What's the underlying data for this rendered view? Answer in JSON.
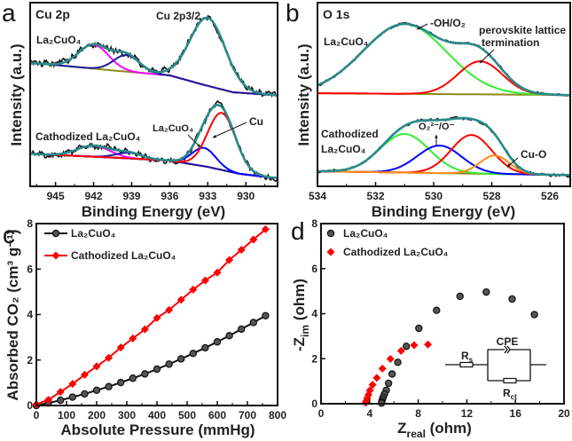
{
  "colors": {
    "data": "#111111",
    "envelope": "#2a8a8a",
    "background": "#8b8b1a",
    "magenta": "#ff00ff",
    "navy": "#1a1a9a",
    "blue": "#0000ff",
    "red": "#ff0000",
    "green": "#33ee33",
    "orange": "#ff8c1a"
  },
  "chart_data": [
    {
      "panel": "a",
      "type": "line",
      "title": "Cu 2p",
      "xlabel": "Binding Energy (eV)",
      "ylabel": "Intensity (a.u.)",
      "xlim": [
        947,
        927.5
      ],
      "xreversed": true,
      "ylim": [
        0,
        100
      ],
      "xticks": [
        945,
        942,
        939,
        936,
        933,
        930
      ],
      "annotations": {
        "main_peak": "Cu 2p3/2",
        "top_label": "La₂CuO₄",
        "bottom_label": "Cathodized La₂CuO₄",
        "blue_label": "La₂CuO₄",
        "red_label": "Cu"
      },
      "spectra": [
        {
          "name": "La₂CuO₄",
          "noise": 1.6,
          "background": [
            [
              947,
              67
            ],
            [
              946,
              66.7
            ],
            [
              940,
              62.8
            ],
            [
              936,
              60.4
            ],
            [
              933.5,
              55.6
            ],
            [
              931,
              51.2
            ],
            [
              928,
              49.8
            ],
            [
              927.5,
              49.6
            ]
          ],
          "peaks": [
            {
              "center": 942.0,
              "fwhm": 2.8,
              "height": 13,
              "color": "magenta"
            },
            {
              "center": 939.4,
              "fwhm": 2.4,
              "height": 9,
              "color": "navy"
            },
            {
              "center": 933.0,
              "fwhm": 3.3,
              "height": 37,
              "color": "envelope"
            }
          ]
        },
        {
          "name": "Cathodized La₂CuO₄",
          "noise": 1.4,
          "background": [
            [
              947,
              17.8
            ],
            [
              946,
              17.4
            ],
            [
              940,
              15.5
            ],
            [
              936,
              14
            ],
            [
              933,
              10.6
            ],
            [
              930.5,
              6.8
            ],
            [
              928,
              4.8
            ],
            [
              927.5,
              4.6
            ]
          ],
          "peaks": [
            {
              "center": 942.0,
              "fwhm": 3.0,
              "height": 6,
              "color": "magenta"
            },
            {
              "center": 939.2,
              "fwhm": 2.5,
              "height": 3,
              "color": "navy"
            },
            {
              "center": 933.3,
              "fwhm": 2.2,
              "height": 10,
              "color": "blue"
            },
            {
              "center": 931.9,
              "fwhm": 2.6,
              "height": 31,
              "color": "red"
            }
          ]
        }
      ]
    },
    {
      "panel": "b",
      "type": "line",
      "title": "O 1s",
      "xlabel": "Binding Energy (eV)",
      "ylabel": "Intensity (a.u.)",
      "xlim": [
        534,
        525.3
      ],
      "xreversed": true,
      "ylim": [
        0,
        100
      ],
      "xticks": [
        534,
        532,
        530,
        528,
        526
      ],
      "annotations": {
        "oh": "-OH/O₂",
        "perov1": "perovskite lattice",
        "perov2": "termination",
        "top_label": "La₂CuO₄",
        "bottom_label1": "Cathodized",
        "bottom_label2": "La₂CuO₄",
        "o2": "O₂²⁻/O⁻",
        "cuo": "Cu-O"
      },
      "spectra": [
        {
          "name": "La₂CuO₄",
          "noise": 0.5,
          "background": [
            [
              534,
              50.7
            ],
            [
              526,
              49.8
            ],
            [
              525.3,
              49.6
            ]
          ],
          "peaks": [
            {
              "center": 531.0,
              "fwhm": 3.4,
              "height": 38,
              "color": "green"
            },
            {
              "center": 528.4,
              "fwhm": 1.8,
              "height": 18,
              "color": "red"
            }
          ]
        },
        {
          "name": "Cathodized La₂CuO₄",
          "noise": 0.6,
          "background": [
            [
              534,
              8.2
            ],
            [
              526,
              6.3
            ],
            [
              525.3,
              6.1
            ]
          ],
          "peaks": [
            {
              "center": 531.0,
              "fwhm": 2.0,
              "height": 21,
              "color": "green"
            },
            {
              "center": 529.8,
              "fwhm": 1.8,
              "height": 15,
              "color": "blue"
            },
            {
              "center": 528.7,
              "fwhm": 1.65,
              "height": 21,
              "color": "red"
            },
            {
              "center": 527.9,
              "fwhm": 1.2,
              "height": 10,
              "color": "orange"
            }
          ]
        }
      ]
    },
    {
      "panel": "c",
      "type": "line",
      "xlabel": "Absolute Pressure (mmHg)",
      "ylabel": "Absorbed CO₂ (cm³ g⁻¹)",
      "xlim": [
        0,
        800
      ],
      "ylim": [
        0,
        8
      ],
      "xticks": [
        0,
        100,
        200,
        300,
        400,
        500,
        600,
        700,
        800
      ],
      "yticks": [
        0,
        2,
        4,
        6,
        8
      ],
      "legend": "top-left",
      "x": [
        0,
        40,
        80,
        120,
        160,
        200,
        240,
        280,
        320,
        360,
        400,
        440,
        480,
        520,
        560,
        600,
        640,
        680,
        720,
        760
      ],
      "series": [
        {
          "name": "La₂CuO₄",
          "color": "#111111",
          "marker": "circle",
          "values": [
            0,
            0.11,
            0.23,
            0.37,
            0.51,
            0.67,
            0.83,
            1.01,
            1.2,
            1.39,
            1.6,
            1.82,
            2.05,
            2.29,
            2.54,
            2.8,
            3.07,
            3.36,
            3.65,
            3.95
          ]
        },
        {
          "name": "Cathodized La₂CuO₄",
          "color": "#ff0000",
          "marker": "diamond",
          "values": [
            0.05,
            0.25,
            0.6,
            0.95,
            1.35,
            1.72,
            2.1,
            2.55,
            2.95,
            3.35,
            3.85,
            4.2,
            4.65,
            5.1,
            5.5,
            5.85,
            6.4,
            6.85,
            7.3,
            7.75
          ]
        }
      ]
    },
    {
      "panel": "d",
      "type": "scatter",
      "xlabel": "Z",
      "xlabel_sub": "real",
      "xlabel_unit": " (ohm)",
      "ylabel": "-Z",
      "ylabel_sub": "im",
      "ylabel_unit": " (ohm)",
      "xlim": [
        0,
        20
      ],
      "ylim": [
        0,
        8
      ],
      "xticks": [
        0,
        4,
        8,
        12,
        16,
        20
      ],
      "yticks": [
        0,
        2,
        4,
        6,
        8
      ],
      "legend": "top-left",
      "circuit": {
        "rs": "R",
        "rs_sub": "s",
        "cpe": "CPE",
        "rct": "R",
        "rct_sub": "ct"
      },
      "series": [
        {
          "name": "La₂CuO₄",
          "color": "#111111",
          "marker": "circle",
          "points": [
            [
              17.56,
              3.96
            ],
            [
              15.73,
              4.65
            ],
            [
              13.6,
              4.96
            ],
            [
              11.44,
              4.77
            ],
            [
              9.51,
              4.15
            ],
            [
              8.05,
              3.35
            ],
            [
              7.02,
              2.55
            ],
            [
              6.32,
              1.84
            ],
            [
              5.85,
              1.32
            ],
            [
              5.56,
              0.91
            ],
            [
              5.37,
              0.6
            ],
            [
              5.22,
              0.43
            ],
            [
              5.12,
              0.29
            ],
            [
              5.05,
              0.19
            ],
            [
              5.0,
              0.09
            ],
            [
              4.98,
              0.03
            ]
          ]
        },
        {
          "name": "Cathodized La₂CuO₄",
          "color": "#ff0000",
          "marker": "diamond",
          "points": [
            [
              8.8,
              2.63
            ],
            [
              7.66,
              2.6
            ],
            [
              6.59,
              2.35
            ],
            [
              5.71,
              1.99
            ],
            [
              5.05,
              1.56
            ],
            [
              4.59,
              1.15
            ],
            [
              4.24,
              0.84
            ],
            [
              4.02,
              0.59
            ],
            [
              3.9,
              0.4
            ],
            [
              3.8,
              0.25
            ],
            [
              3.73,
              0.13
            ],
            [
              3.68,
              0.05
            ]
          ]
        }
      ]
    }
  ],
  "panel_letters": [
    "a",
    "b",
    "c",
    "d"
  ]
}
